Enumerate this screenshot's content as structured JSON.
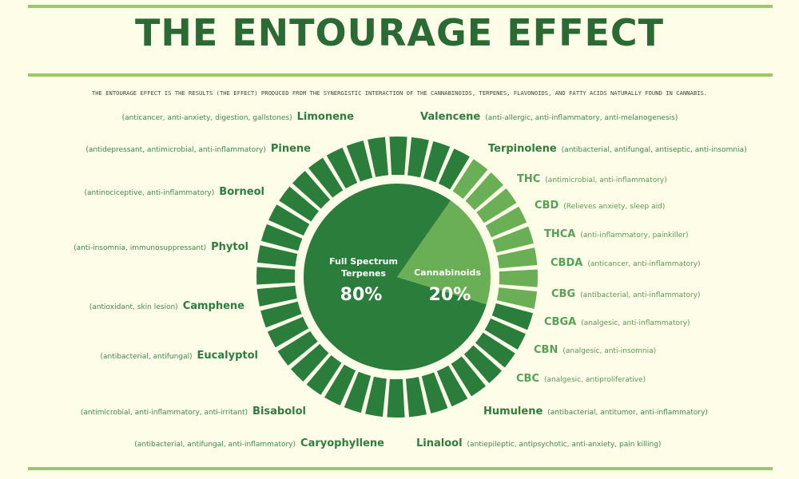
{
  "title": "THE ENTOURAGE EFFECT",
  "subtitle": "THE ENTOURAGE EFFECT IS THE RESULTS (THE EFFECT) PRODUCED FROM THE SYNERGISTIC INTERACTION OF THE CANNABINOIDS, TERPENES, FLAVONOIDS, AND FATTY ACIDS NATURALLY FOUND IN CANNABIS.",
  "colors": {
    "dark_green": "#2b7d3c",
    "light_green": "#6aaf55",
    "background": "#fdfde8",
    "rule": "#9fc471"
  },
  "center": {
    "terpenes_label": "Full Spectrum\nTerpenes",
    "terpenes_value": "80%",
    "cannabinoids_label": "Cannabinoids",
    "cannabinoids_value": "20%"
  },
  "ring": {
    "terpene_segments": 32,
    "cannabinoid_segments": 8
  },
  "left_items": [
    {
      "name": "Limonene",
      "desc": "(anticancer, anti-anxiety, digestion, gallstones)"
    },
    {
      "name": "Pinene",
      "desc": "(antidepressant, antimicrobial, anti-inflammatory)"
    },
    {
      "name": "Borneol",
      "desc": "(antinociceptive, anti-inflammatory)"
    },
    {
      "name": "Phytol",
      "desc": "(anti-insomnia, immunosuppressant)"
    },
    {
      "name": "Camphene",
      "desc": "(antioxidant, skin lesion)"
    },
    {
      "name": "Eucalyptol",
      "desc": "(antibacterial, antifungal)"
    },
    {
      "name": "Bisabolol",
      "desc": "(antimicrobial, anti-inflammatory, anti-irritant)"
    },
    {
      "name": "Caryophyllene",
      "desc": "(antibacterial, antifungal, anti-inflammatory)"
    }
  ],
  "right_items": [
    {
      "name": "Valencene",
      "desc": "(anti-allergic, anti-inflammatory, anti-melanogenesis)",
      "kind": "terpene"
    },
    {
      "name": "Terpinolene",
      "desc": "(antibacterial, antifungal, antiseptic, anti-insomnia)",
      "kind": "terpene"
    },
    {
      "name": "THC",
      "desc": "(antimicrobial, anti-inflammatory)",
      "kind": "cannabinoid"
    },
    {
      "name": "CBD",
      "desc": "(Relieves anxiety, sleep aid)",
      "kind": "cannabinoid"
    },
    {
      "name": "THCA",
      "desc": "(anti-inflammatory, painkiller)",
      "kind": "cannabinoid"
    },
    {
      "name": "CBDA",
      "desc": "(anticancer, anti-inflammatory)",
      "kind": "cannabinoid"
    },
    {
      "name": "CBG",
      "desc": "(antibacterial, anti-inflammatory)",
      "kind": "cannabinoid"
    },
    {
      "name": "CBGA",
      "desc": "(analgesic, anti-inflammatory)",
      "kind": "cannabinoid"
    },
    {
      "name": "CBN",
      "desc": "(analgesic, anti-insomnia)",
      "kind": "cannabinoid"
    },
    {
      "name": "CBC",
      "desc": "(analgesic, antiproliferative)",
      "kind": "cannabinoid"
    },
    {
      "name": "Humulene",
      "desc": "(antibacterial, antitumor, anti-inflammatory)",
      "kind": "terpene"
    },
    {
      "name": "Linalool",
      "desc": "(antiepileptic, antipsychotic, anti-anxiety, pain killing)",
      "kind": "terpene"
    }
  ]
}
